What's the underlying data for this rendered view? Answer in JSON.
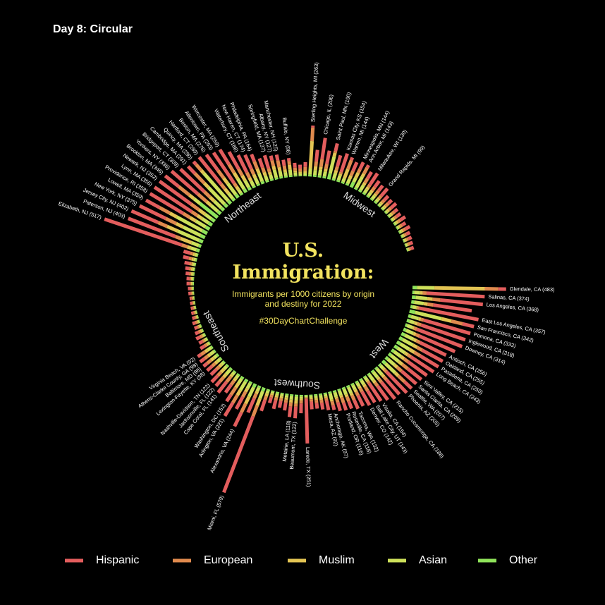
{
  "chart_data": {
    "type": "radial_stacked_bar",
    "header": "Day 8: Circular",
    "title": "U.S. Immigration:",
    "subtitle": "Immigrants per 1000 citizens by origin and destiny for 2022",
    "caption": "#30DayChartChallenge",
    "ylim": [
      0,
      600
    ],
    "series": [
      {
        "name": "Hispanic",
        "color": "#e35d5d"
      },
      {
        "name": "European",
        "color": "#e08a4e"
      },
      {
        "name": "Muslim",
        "color": "#e3c453"
      },
      {
        "name": "Asian",
        "color": "#cde05a"
      },
      {
        "name": "Other",
        "color": "#8fe35a"
      }
    ],
    "regions": [
      {
        "name": "West",
        "categories": [
          "Glendale, CA (483)",
          "Salinas, CA (374)",
          "Los Angeles, CA (368)",
          null,
          "East Los Angeles, CA (357)",
          "San Francisco, CA (342)",
          "Pomona, CA (333)",
          "Inglewood, CA (318)",
          "Downey, CA (314)",
          null,
          "Antioch, CA (256)",
          "Oakland, CA (255)",
          "Pasadena, CA (250)",
          "Long Beach, CA (243)",
          null,
          "Simi Valley, CA (215)",
          "Santa Clarita, CA (209)",
          "Seattle, WA (207)",
          "Phoenix, AZ (205)",
          null,
          "Rancho Cucamonga, CA (188)",
          null,
          "Visalia, CA (154)",
          "Salt Lake City, UT (143)",
          "Denver, CO (142)",
          null,
          "Tacoma, WA (132)",
          "Roseville, CA (118)",
          "Portland, OR (116)",
          null,
          "Anchorage, AK (97)",
          "Mesa, AZ (92)"
        ],
        "values": [
          [
            40,
            70,
            260,
            90,
            23
          ],
          [
            300,
            20,
            14,
            30,
            10
          ],
          [
            220,
            40,
            28,
            60,
            20
          ],
          [
            200,
            30,
            20,
            50,
            15
          ],
          [
            310,
            10,
            7,
            20,
            10
          ],
          [
            60,
            60,
            52,
            140,
            30
          ],
          [
            250,
            15,
            13,
            40,
            15
          ],
          [
            240,
            20,
            18,
            25,
            15
          ],
          [
            250,
            15,
            9,
            30,
            10
          ],
          [
            200,
            20,
            15,
            40,
            15
          ],
          [
            150,
            20,
            16,
            50,
            20
          ],
          [
            120,
            30,
            25,
            60,
            20
          ],
          [
            110,
            35,
            30,
            55,
            20
          ],
          [
            140,
            20,
            18,
            45,
            20
          ],
          [
            120,
            25,
            20,
            45,
            15
          ],
          [
            90,
            35,
            25,
            50,
            15
          ],
          [
            100,
            30,
            19,
            45,
            15
          ],
          [
            50,
            45,
            22,
            70,
            20
          ],
          [
            150,
            15,
            10,
            20,
            10
          ],
          [
            100,
            20,
            15,
            40,
            10
          ],
          [
            110,
            20,
            13,
            35,
            10
          ],
          [
            90,
            20,
            15,
            35,
            10
          ],
          [
            110,
            10,
            9,
            18,
            7
          ],
          [
            70,
            25,
            13,
            25,
            10
          ],
          [
            80,
            20,
            12,
            20,
            10
          ],
          [
            60,
            20,
            15,
            25,
            10
          ],
          [
            50,
            25,
            12,
            35,
            10
          ],
          [
            40,
            25,
            13,
            30,
            10
          ],
          [
            40,
            30,
            11,
            25,
            10
          ],
          [
            45,
            20,
            10,
            25,
            10
          ],
          [
            25,
            20,
            10,
            32,
            10
          ],
          [
            50,
            15,
            7,
            12,
            8
          ]
        ]
      },
      {
        "name": "Southwest",
        "categories": [
          null,
          null,
          null,
          "Laredo, TX (251)",
          null,
          "Beaumont, TX (122)",
          "Metairie, LA (118)",
          null,
          null,
          null,
          null
        ],
        "values": [
          [
            35,
            15,
            10,
            15,
            8
          ],
          [
            30,
            15,
            10,
            12,
            8
          ],
          [
            40,
            12,
            8,
            10,
            6
          ],
          [
            230,
            5,
            4,
            7,
            5
          ],
          [
            50,
            15,
            10,
            12,
            8
          ],
          [
            60,
            15,
            17,
            20,
            10
          ],
          [
            55,
            20,
            15,
            18,
            10
          ],
          [
            40,
            15,
            12,
            12,
            8
          ],
          [
            35,
            15,
            10,
            12,
            6
          ],
          [
            45,
            15,
            10,
            12,
            8
          ],
          [
            30,
            12,
            8,
            10,
            6
          ]
        ]
      },
      {
        "name": "Southeast",
        "categories": [
          null,
          "Miami, FL (579)",
          null,
          "Alexandria, VA (244)",
          null,
          "Arlington, VA (221)",
          "Washington, DC (152)",
          null,
          "Cape Coral, FL (141)",
          "Jacksonville, FL (122)",
          "Nashville-Davidson, TN (122)",
          null,
          "Lexington-Fayette, KY (98)",
          "Baltimore, MD (98)",
          "Athens-Clarke County, GA (98)",
          "Virginia Beach, VA (92)",
          null,
          null,
          null,
          null,
          null,
          null,
          null,
          null,
          null,
          null,
          null,
          null,
          null,
          null,
          null,
          null,
          null,
          null,
          null,
          null
        ],
        "values": [
          [
            60,
            20,
            15,
            15,
            8
          ],
          [
            420,
            60,
            40,
            39,
            20
          ],
          [
            80,
            25,
            15,
            20,
            10
          ],
          [
            80,
            50,
            40,
            54,
            20
          ],
          [
            70,
            30,
            20,
            30,
            10
          ],
          [
            80,
            45,
            30,
            51,
            15
          ],
          [
            40,
            45,
            25,
            30,
            12
          ],
          [
            50,
            25,
            15,
            20,
            8
          ],
          [
            70,
            35,
            12,
            16,
            8
          ],
          [
            30,
            30,
            20,
            30,
            12
          ],
          [
            45,
            25,
            22,
            20,
            10
          ],
          [
            40,
            20,
            15,
            15,
            8
          ],
          [
            35,
            20,
            15,
            20,
            8
          ],
          [
            25,
            25,
            20,
            18,
            10
          ],
          [
            30,
            20,
            15,
            25,
            8
          ],
          [
            20,
            25,
            15,
            24,
            8
          ],
          [
            25,
            12,
            8,
            8,
            5
          ],
          [
            20,
            10,
            8,
            8,
            4
          ],
          [
            22,
            12,
            6,
            8,
            5
          ],
          [
            18,
            10,
            8,
            6,
            4
          ],
          [
            15,
            8,
            6,
            6,
            4
          ],
          [
            15,
            10,
            5,
            6,
            4
          ],
          [
            12,
            8,
            5,
            5,
            3
          ],
          [
            12,
            6,
            5,
            5,
            3
          ],
          [
            10,
            6,
            4,
            5,
            3
          ],
          [
            10,
            6,
            4,
            4,
            3
          ],
          [
            10,
            5,
            4,
            4,
            3
          ],
          [
            12,
            6,
            4,
            5,
            3
          ],
          [
            12,
            6,
            5,
            5,
            3
          ],
          [
            15,
            8,
            5,
            6,
            4
          ],
          [
            15,
            8,
            6,
            6,
            4
          ],
          [
            18,
            10,
            6,
            8,
            4
          ],
          [
            20,
            10,
            8,
            8,
            5
          ],
          [
            25,
            12,
            8,
            10,
            5
          ],
          [
            30,
            15,
            10,
            12,
            6
          ],
          [
            35,
            15,
            10,
            12,
            6
          ]
        ]
      },
      {
        "name": "Northeast",
        "categories": [
          "Elizabeth, NJ (517)",
          "Paterson, NJ (403)",
          "Jersey City, NJ (402)",
          "New York, NY (375)",
          "Lowell, MA (359)",
          "Providence, RI (358)",
          "Lynn, MA (356)",
          "Newark, NJ (352)",
          "Brockton, MA (346)",
          "Yonkers, NY (336)",
          "Bridgeport, CT (309)",
          "Cambridge, MA (291)",
          "Quincy, MA (290)",
          "Hartford, CT (289)",
          "Boston, MA (276)",
          "Allentown, PA (263)",
          "Worcester, MA (259)",
          null,
          "Waterbury, CT (188)",
          "New Haven, CT (174)",
          "Philadelphia, PA (164)",
          null,
          "Springfield, MA (137)",
          "Albany, NY (127)",
          "Manchester, NH (125)",
          null,
          "Buffalo, NY (98)",
          null
        ],
        "values": [
          [
            420,
            30,
            20,
            30,
            17
          ],
          [
            260,
            30,
            60,
            40,
            13
          ],
          [
            150,
            50,
            60,
            120,
            22
          ],
          [
            150,
            60,
            40,
            100,
            25
          ],
          [
            80,
            60,
            40,
            150,
            29
          ],
          [
            200,
            40,
            35,
            60,
            23
          ],
          [
            230,
            35,
            30,
            40,
            21
          ],
          [
            200,
            50,
            40,
            40,
            22
          ],
          [
            90,
            70,
            30,
            40,
            116
          ],
          [
            180,
            60,
            30,
            46,
            20
          ],
          [
            170,
            40,
            30,
            50,
            19
          ],
          [
            50,
            70,
            30,
            120,
            21
          ],
          [
            20,
            40,
            20,
            190,
            20
          ],
          [
            180,
            30,
            30,
            35,
            14
          ],
          [
            100,
            50,
            35,
            70,
            21
          ],
          [
            190,
            20,
            20,
            23,
            10
          ],
          [
            90,
            50,
            35,
            64,
            20
          ],
          [
            100,
            40,
            30,
            40,
            15
          ],
          [
            100,
            30,
            20,
            28,
            10
          ],
          [
            80,
            30,
            20,
            34,
            10
          ],
          [
            40,
            40,
            25,
            45,
            14
          ],
          [
            50,
            25,
            20,
            25,
            10
          ],
          [
            70,
            20,
            15,
            22,
            10
          ],
          [
            25,
            30,
            20,
            42,
            10
          ],
          [
            30,
            35,
            20,
            30,
            10
          ],
          [
            30,
            20,
            15,
            20,
            8
          ],
          [
            15,
            20,
            25,
            30,
            8
          ],
          [
            25,
            15,
            10,
            15,
            6
          ]
        ]
      },
      {
        "name": "Midwest",
        "categories": [
          null,
          null,
          "Sterling Heights, MI (263)",
          null,
          "Chicago, IL (206)",
          null,
          "Saint Paul, MN (190)",
          null,
          "Kansas City, KS (154)",
          "Warren, MI (144)",
          null,
          "Minneapolis, MN (144)",
          "Ann Arbor, MI (143)",
          null,
          "Milwaukee, WI (130)",
          null,
          null,
          "Grand Rapids, MI (99)",
          null,
          null,
          null,
          null,
          null,
          null,
          null,
          null,
          null,
          null,
          null,
          null
        ],
        "values": [
          [
            20,
            15,
            10,
            10,
            5
          ],
          [
            25,
            20,
            10,
            12,
            6
          ],
          [
            10,
            70,
            140,
            33,
            10
          ],
          [
            60,
            25,
            20,
            25,
            10
          ],
          [
            110,
            40,
            15,
            30,
            11
          ],
          [
            70,
            25,
            15,
            25,
            10
          ],
          [
            40,
            10,
            20,
            90,
            30
          ],
          [
            60,
            20,
            15,
            30,
            10
          ],
          [
            100,
            10,
            9,
            25,
            10
          ],
          [
            15,
            50,
            50,
            20,
            9
          ],
          [
            50,
            25,
            20,
            25,
            10
          ],
          [
            40,
            20,
            30,
            24,
            30
          ],
          [
            15,
            35,
            18,
            65,
            10
          ],
          [
            40,
            25,
            15,
            30,
            10
          ],
          [
            70,
            15,
            15,
            20,
            10
          ],
          [
            40,
            20,
            15,
            20,
            8
          ],
          [
            35,
            20,
            12,
            20,
            8
          ],
          [
            50,
            15,
            10,
            15,
            9
          ],
          [
            30,
            15,
            10,
            12,
            6
          ],
          [
            25,
            18,
            10,
            12,
            6
          ],
          [
            35,
            15,
            10,
            10,
            6
          ],
          [
            20,
            15,
            10,
            12,
            5
          ],
          [
            25,
            12,
            8,
            10,
            5
          ],
          [
            30,
            15,
            10,
            10,
            6
          ],
          [
            20,
            12,
            8,
            10,
            5
          ],
          [
            25,
            15,
            10,
            10,
            5
          ],
          [
            20,
            10,
            8,
            8,
            5
          ],
          [
            18,
            10,
            8,
            8,
            4
          ],
          [
            15,
            10,
            6,
            8,
            4
          ],
          [
            15,
            8,
            6,
            6,
            4
          ]
        ]
      }
    ]
  }
}
